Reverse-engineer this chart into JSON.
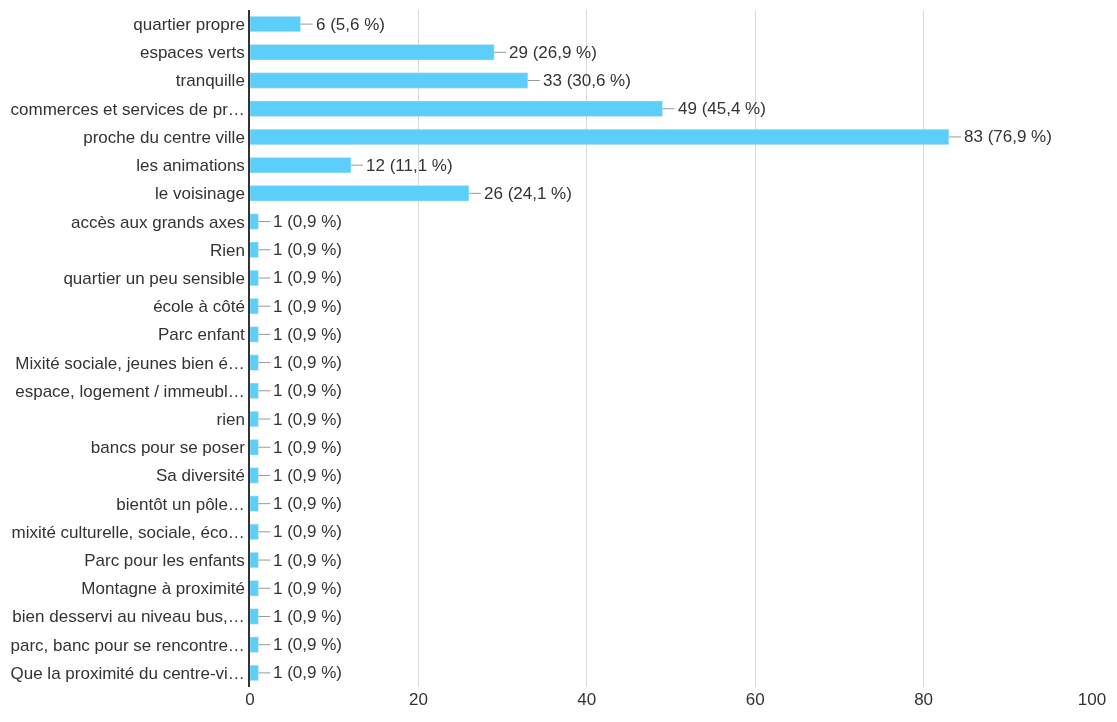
{
  "chart_data": {
    "type": "bar",
    "orientation": "horizontal",
    "categories": [
      "quartier propre",
      "espaces verts",
      "tranquille",
      "commerces et services de pr…",
      "proche du centre ville",
      "les animations",
      "le voisinage",
      "accès aux grands axes",
      "Rien",
      "quartier un peu sensible",
      "école à côté",
      "Parc enfant",
      "Mixité sociale, jeunes bien é…",
      "espace, logement / immeubl…",
      "rien",
      "bancs pour se poser",
      "Sa diversité",
      "bientôt un pôle…",
      "mixité culturelle, sociale, éco…",
      "Parc pour les enfants",
      "Montagne à proximité",
      "bien desservi au niveau bus,…",
      "parc, banc pour se rencontre…",
      "Que la proximité du centre-vi…"
    ],
    "values": [
      6,
      29,
      33,
      49,
      83,
      12,
      26,
      1,
      1,
      1,
      1,
      1,
      1,
      1,
      1,
      1,
      1,
      1,
      1,
      1,
      1,
      1,
      1,
      1
    ],
    "value_labels": [
      "6 (5,6 %)",
      "29 (26,9 %)",
      "33 (30,6 %)",
      "49 (45,4 %)",
      "83 (76,9 %)",
      "12 (11,1 %)",
      "26 (24,1 %)",
      "1 (0,9 %)",
      "1 (0,9 %)",
      "1 (0,9 %)",
      "1 (0,9 %)",
      "1 (0,9 %)",
      "1 (0,9 %)",
      "1 (0,9 %)",
      "1 (0,9 %)",
      "1 (0,9 %)",
      "1 (0,9 %)",
      "1 (0,9 %)",
      "1 (0,9 %)",
      "1 (0,9 %)",
      "1 (0,9 %)",
      "1 (0,9 %)",
      "1 (0,9 %)",
      "1 (0,9 %)"
    ],
    "color": "#5bcefa",
    "xlim": [
      0,
      100
    ],
    "xticks": [
      0,
      20,
      40,
      60,
      80,
      100
    ],
    "grid": "x"
  }
}
